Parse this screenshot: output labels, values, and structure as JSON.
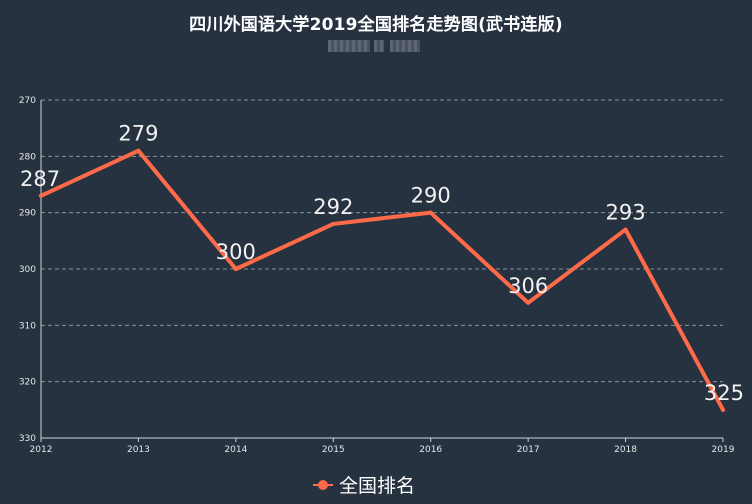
{
  "chart_data": {
    "type": "line",
    "title": "四川外国语大学2019全国排名走势图(武书连版)",
    "categories": [
      "2012",
      "2013",
      "2014",
      "2015",
      "2016",
      "2017",
      "2018",
      "2019"
    ],
    "series": [
      {
        "name": "全国排名",
        "values": [
          287,
          279,
          300,
          292,
          290,
          306,
          293,
          325
        ],
        "color": "#ff6a48"
      }
    ],
    "yticks": [
      "270",
      "280",
      "290",
      "300",
      "310",
      "320",
      "330"
    ],
    "ylim": [
      270,
      330
    ],
    "y_inverted": true,
    "grid": true,
    "legend": "bottom-center",
    "colors": {
      "background": "#273241",
      "text": "#ffffff",
      "grid": "#8a929c",
      "axis": "#cfd3d8"
    }
  }
}
